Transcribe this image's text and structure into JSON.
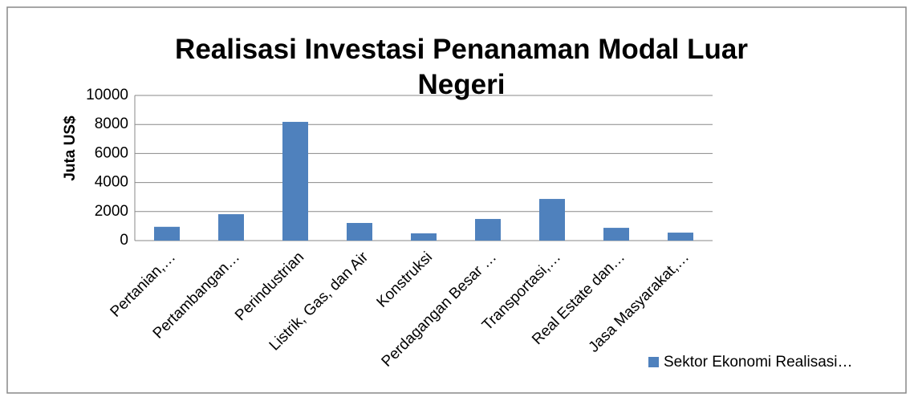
{
  "chart_data": {
    "type": "bar",
    "title": "Realisasi Investasi Penanaman Modal Luar Negeri",
    "y_label": "Juta US$",
    "categories": [
      "Pertanian,…",
      "Pertambangan…",
      "Perindustrian",
      "Listrik, Gas, dan Air",
      "Konstruksi",
      "Perdagangan Besar …",
      "Transportasi,…",
      "Real Estate dan…",
      "Jasa Masyarakat,…"
    ],
    "series": [
      {
        "name": "Sektor Ekonomi Realisasi…",
        "color": "#4f81bd",
        "values": [
          950,
          1820,
          8180,
          1215,
          500,
          1490,
          2870,
          880,
          550
        ]
      }
    ],
    "ylim": [
      0,
      10000
    ],
    "yticks": [
      0,
      2000,
      4000,
      6000,
      8000,
      10000
    ],
    "grid": true,
    "legend": "bottom-right"
  }
}
